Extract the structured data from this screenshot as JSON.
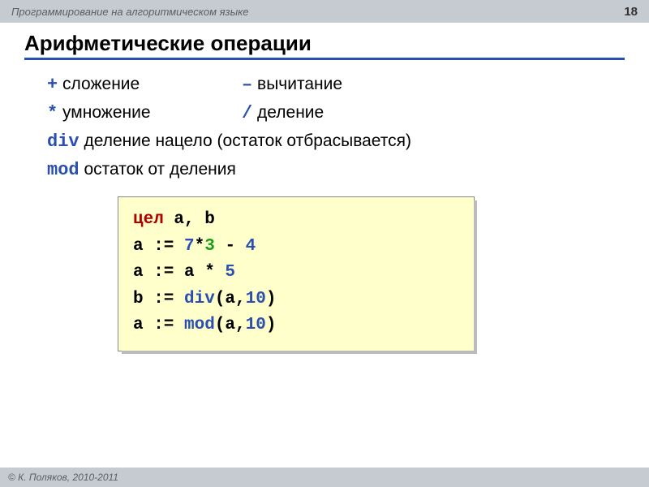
{
  "header": {
    "course": "Программирование на алгоритмическом языке",
    "page": "18"
  },
  "title": "Арифметические операции",
  "ops": {
    "plus_sym": "+",
    "plus_label": "сложение",
    "minus_sym": "–",
    "minus_label": "вычитание",
    "mul_sym": "*",
    "mul_label": "умножение",
    "div_sym": "/",
    "div_label": "деление",
    "idiv_sym": "div",
    "idiv_label": "деление нацело (остаток отбрасывается)",
    "mod_sym": "mod",
    "mod_label": "остаток от деления"
  },
  "code": {
    "l1_kw": "цел",
    "l1_rest": " a, b",
    "l2_a": "a := ",
    "l2_n1": "7",
    "l2_op1": "*",
    "l2_n2": "3",
    "l2_op2": " - ",
    "l2_n3": "4",
    "l3_a": "a := a * ",
    "l3_n1": "5",
    "l4_a": "b := ",
    "l4_fn": "div",
    "l4_p1": "(a,",
    "l4_n1": "10",
    "l4_p2": ")",
    "l5_a": "a := ",
    "l5_fn": "mod",
    "l5_p1": "(a,",
    "l5_n1": "10",
    "l5_p2": ")"
  },
  "footer": "© К. Поляков, 2010-2011",
  "colors": {
    "header_bg": "#c6cbd1",
    "accent_blue": "#2a4fb0",
    "code_bg": "#ffffcc",
    "kw_red": "#b00000",
    "kw_green": "#1a9c1a"
  }
}
